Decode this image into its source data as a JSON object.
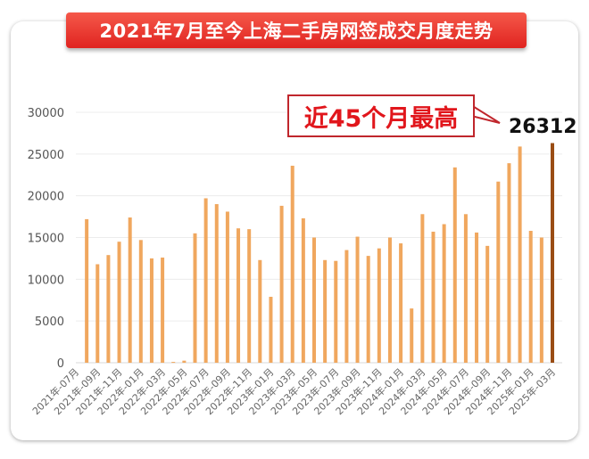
{
  "chart_data": {
    "type": "bar",
    "title": "2021年7月至今上海二手房网签成交月度走势",
    "xlabel": "",
    "ylabel": "",
    "ylim": [
      0,
      30000
    ],
    "yticks": [
      0,
      5000,
      10000,
      15000,
      20000,
      25000,
      30000
    ],
    "grid": true,
    "categories": [
      "2021年-07月",
      "2021年-08月",
      "2021年-09月",
      "2021年-10月",
      "2021年-11月",
      "2021年-12月",
      "2022年-01月",
      "2022年-02月",
      "2022年-03月",
      "2022年-04月",
      "2022年-05月",
      "2022年-06月",
      "2022年-07月",
      "2022年-08月",
      "2022年-09月",
      "2022年-10月",
      "2022年-11月",
      "2022年-12月",
      "2023年-01月",
      "2023年-02月",
      "2023年-03月",
      "2023年-04月",
      "2023年-05月",
      "2023年-06月",
      "2023年-07月",
      "2023年-08月",
      "2023年-09月",
      "2023年-10月",
      "2023年-11月",
      "2023年-12月",
      "2024年-01月",
      "2024年-02月",
      "2024年-03月",
      "2024年-04月",
      "2024年-05月",
      "2024年-06月",
      "2024年-07月",
      "2024年-08月",
      "2024年-09月",
      "2024年-10月",
      "2024年-11月",
      "2024年-12月",
      "2025年-01月",
      "2025年-02月",
      "2025年-03月"
    ],
    "values": [
      null,
      17200,
      11800,
      12900,
      14500,
      17400,
      14700,
      12500,
      12600,
      100,
      250,
      15500,
      19700,
      19000,
      18100,
      16100,
      16000,
      12300,
      7900,
      18800,
      23600,
      17300,
      15000,
      12300,
      12200,
      13500,
      15100,
      12800,
      13700,
      15000,
      14300,
      6500,
      17800,
      15700,
      16600,
      23400,
      17800,
      15600,
      14000,
      21700,
      23900,
      25900,
      15800,
      15000,
      26312
    ],
    "bar_color": "#f0a75e",
    "highlight_color": "#9a4d14",
    "annotation": {
      "text": "近45个月最高",
      "value_label": "26312",
      "color": "#e1161c"
    }
  }
}
